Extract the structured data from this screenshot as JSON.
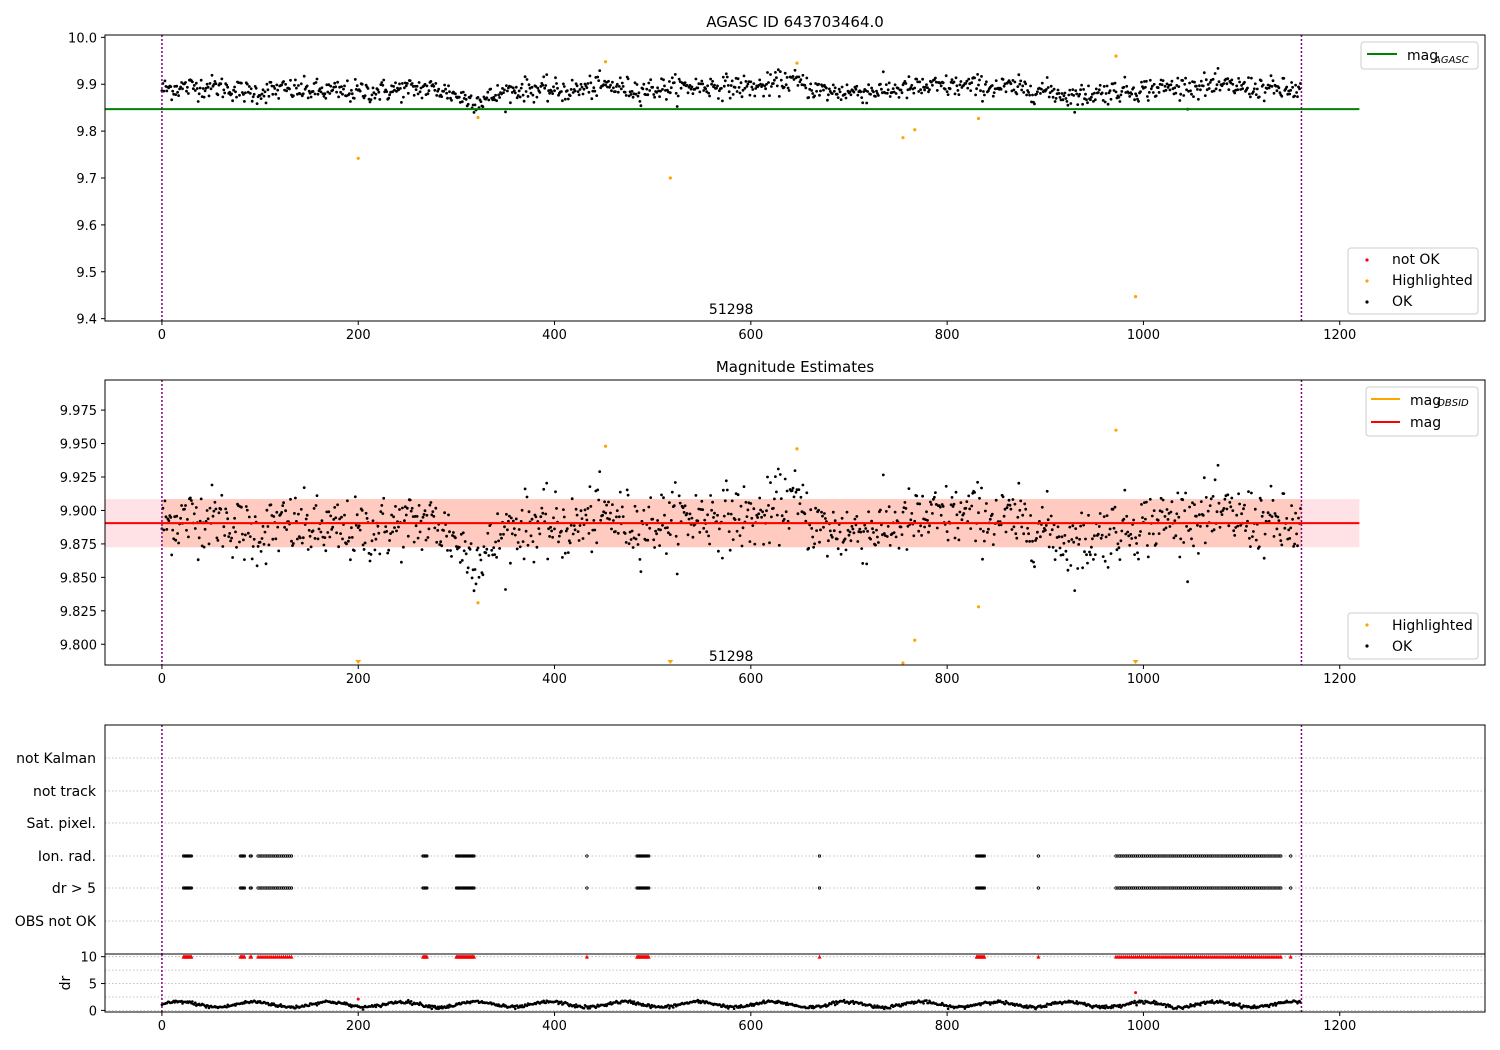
{
  "chart_data": [
    {
      "type": "scatter",
      "title": "AGASC ID 643703464.0",
      "xlabel": "",
      "ylabel": "",
      "xlim": [
        -58,
        1348
      ],
      "ylim": [
        9.395,
        10.005
      ],
      "x_ticks": [
        0,
        200,
        400,
        600,
        800,
        1000,
        1200
      ],
      "y_ticks": [
        9.4,
        9.5,
        9.6,
        9.7,
        9.8,
        9.9,
        10.0
      ],
      "y_tick_labels": [
        "9.4",
        "9.5",
        "9.6",
        "9.7",
        "9.8",
        "9.9",
        "10.0"
      ],
      "annotation": "51298",
      "annotation_at": {
        "x": 580,
        "y": 9.41
      },
      "vlines": [
        0,
        1161
      ],
      "hline": {
        "name": "mag_AGASC",
        "y": 9.847,
        "x_range": [
          -58,
          1220
        ],
        "color": "#008000"
      },
      "legend_lines": [
        {
          "label": "mag",
          "subscript": "AGASC",
          "color": "#008000"
        }
      ],
      "legend_markers": [
        {
          "label": "not OK",
          "color": "#ff0000"
        },
        {
          "label": "Highlighted",
          "color": "#ffa500"
        },
        {
          "label": "OK",
          "color": "#000000"
        }
      ],
      "ok_series": {
        "name": "OK",
        "n": 1161,
        "mean": 9.89,
        "amplitude": 0.012,
        "noise": 0.012,
        "dips": [
          {
            "x": 320,
            "depth": 0.03,
            "w": 30
          },
          {
            "x": 90,
            "depth": 0.012,
            "w": 25
          },
          {
            "x": 930,
            "depth": 0.01,
            "w": 20
          }
        ],
        "bumps": [
          {
            "x": 640,
            "depth": 0.02,
            "w": 20
          },
          {
            "x": 450,
            "depth": 0.012,
            "w": 25
          }
        ]
      },
      "highlighted": [
        {
          "x": 200,
          "y": 9.742
        },
        {
          "x": 322,
          "y": 9.829
        },
        {
          "x": 452,
          "y": 9.948
        },
        {
          "x": 518,
          "y": 9.7
        },
        {
          "x": 647,
          "y": 9.945
        },
        {
          "x": 755,
          "y": 9.786
        },
        {
          "x": 767,
          "y": 9.803
        },
        {
          "x": 832,
          "y": 9.827
        },
        {
          "x": 972,
          "y": 9.96
        },
        {
          "x": 992,
          "y": 9.447
        }
      ]
    },
    {
      "type": "scatter",
      "title": "Magnitude Estimates",
      "xlabel": "",
      "ylabel": "",
      "xlim": [
        -58,
        1348
      ],
      "ylim": [
        9.7845,
        9.9975
      ],
      "x_ticks": [
        0,
        200,
        400,
        600,
        800,
        1000,
        1200
      ],
      "y_ticks": [
        9.8,
        9.825,
        9.85,
        9.875,
        9.9,
        9.925,
        9.95,
        9.975
      ],
      "y_tick_labels": [
        "9.800",
        "9.825",
        "9.850",
        "9.875",
        "9.900",
        "9.925",
        "9.950",
        "9.975"
      ],
      "annotation": "51298",
      "annotation_at": {
        "x": 580,
        "y": 9.7875
      },
      "vlines": [
        0,
        1161
      ],
      "mag_line": {
        "name": "mag",
        "y": 9.8905,
        "x_range": [
          -58,
          1220
        ],
        "color": "#ff0000"
      },
      "mag_band": {
        "y0": 9.8725,
        "y1": 9.9085,
        "x_range": [
          -58,
          1220
        ],
        "color": "#ffb6c1"
      },
      "obsid_line": {
        "name": "mag_OBSID",
        "y": 9.8905,
        "x_range": [
          0,
          1161
        ],
        "color": "#ffa500"
      },
      "obsid_band": {
        "y0": 9.8725,
        "y1": 9.9085,
        "x_range": [
          0,
          1161
        ],
        "color": "#ffa07a"
      },
      "legend_lines": [
        {
          "label": "mag",
          "subscript": "OBSID",
          "color": "#ffa500"
        },
        {
          "label": "mag",
          "subscript": "",
          "color": "#ff0000"
        }
      ],
      "legend_markers": [
        {
          "label": "Highlighted",
          "color": "#ffa500"
        },
        {
          "label": "OK",
          "color": "#000000"
        }
      ],
      "highlighted": [
        {
          "x": 322,
          "y": 9.831
        },
        {
          "x": 452,
          "y": 9.948
        },
        {
          "x": 647,
          "y": 9.946
        },
        {
          "x": 755,
          "y": 9.786
        },
        {
          "x": 767,
          "y": 9.803
        },
        {
          "x": 832,
          "y": 9.828
        },
        {
          "x": 972,
          "y": 9.96
        }
      ],
      "off_scale_low": [
        200,
        518,
        992
      ]
    },
    {
      "type": "scatter",
      "title": "",
      "xlabel": "",
      "ylabel": "",
      "xlim": [
        -58,
        1348
      ],
      "flag_rows": [
        "not Kalman",
        "not track",
        "Sat. pixel.",
        "Ion. rad.",
        "dr > 5",
        "OBS not OK"
      ],
      "flag_runs": [
        {
          "from": 22,
          "to": 30
        },
        {
          "from": 80,
          "to": 84
        },
        {
          "from": 90,
          "to": 91
        },
        {
          "from": 98,
          "to": 132
        },
        {
          "from": 266,
          "to": 270
        },
        {
          "from": 300,
          "to": 318
        },
        {
          "from": 433,
          "to": 433
        },
        {
          "from": 484,
          "to": 496
        },
        {
          "from": 670,
          "to": 670
        },
        {
          "from": 830,
          "to": 838
        },
        {
          "from": 893,
          "to": 893
        },
        {
          "from": 972,
          "to": 1140
        },
        {
          "from": 1150,
          "to": 1150
        }
      ],
      "vlines": [
        0,
        1161
      ]
    },
    {
      "type": "scatter",
      "title": "",
      "xlabel": "",
      "ylabel": "dr",
      "xlim": [
        -58,
        1348
      ],
      "ylim": [
        -0.3,
        10.5
      ],
      "x_ticks": [
        0,
        200,
        400,
        600,
        800,
        1000,
        1200
      ],
      "y_ticks": [
        0,
        5,
        10
      ],
      "y_tick_labels": [
        "0",
        "5",
        "10"
      ],
      "dr_series": {
        "name": "dr",
        "n": 1161,
        "mean": 1.1,
        "amplitude": 0.5
      },
      "outliers": [
        {
          "x": 200,
          "y": 2.1
        },
        {
          "x": 992,
          "y": 3.3
        }
      ],
      "capped_value": 10,
      "vlines": [
        0,
        1161
      ]
    }
  ]
}
